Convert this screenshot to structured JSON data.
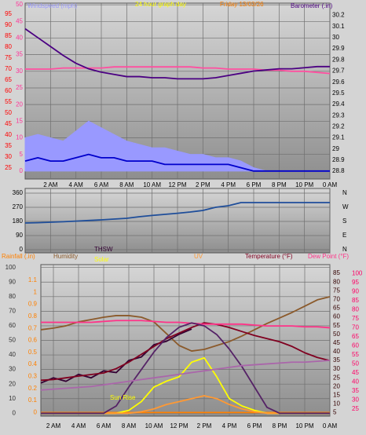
{
  "chart_data": [
    {
      "type": "line",
      "title": "24 hour graph day",
      "subtitle": "Friday 13/03/26",
      "x": [
        0,
        1,
        2,
        3,
        4,
        5,
        6,
        7,
        8,
        9,
        10,
        11,
        12,
        13,
        14,
        15,
        16,
        17,
        18,
        19,
        20,
        21,
        22,
        23,
        24
      ],
      "xlim": [
        0,
        24
      ],
      "xticks": [
        {
          "value": 2,
          "label": "2 AM"
        },
        {
          "value": 4,
          "label": "4 AM"
        },
        {
          "value": 6,
          "label": "6 AM"
        },
        {
          "value": 8,
          "label": "8 AM"
        },
        {
          "value": 10,
          "label": "10 AM"
        },
        {
          "value": 12,
          "label": "12 PM"
        },
        {
          "value": 14,
          "label": "2 PM"
        },
        {
          "value": 16,
          "label": "4 PM"
        },
        {
          "value": 18,
          "label": "6 PM"
        },
        {
          "value": 20,
          "label": "8 PM"
        },
        {
          "value": 22,
          "label": "10 PM"
        },
        {
          "value": 24,
          "label": "0 AM"
        }
      ],
      "grid": true,
      "axes": [
        {
          "side": "left",
          "color": "#ff3399",
          "lim": [
            -2.4,
            50.5
          ],
          "ticks": [
            0,
            5,
            10,
            15,
            20,
            25,
            30,
            35,
            40,
            45,
            50
          ],
          "grid": true
        },
        {
          "side": "left",
          "color": "#ff0000",
          "lim": [
            20,
            100
          ],
          "ticks": [
            25,
            30,
            35,
            40,
            45,
            50,
            55,
            60,
            65,
            70,
            75,
            80,
            85,
            90,
            95
          ]
        },
        {
          "side": "right",
          "color": "#000000",
          "lim": [
            28.73,
            30.31
          ],
          "ticks": [
            28.8,
            28.9,
            29,
            29.1,
            29.2,
            29.3,
            29.4,
            29.5,
            29.6,
            29.7,
            29.8,
            29.9,
            30,
            30.1,
            30.2
          ]
        }
      ],
      "series": [
        {
          "name": "Windspeed (mph)",
          "color": "#9999ff",
          "axis": 0,
          "area": true,
          "values": [
            10,
            11,
            10,
            9,
            12,
            15,
            13,
            11,
            9,
            8,
            7,
            7,
            6,
            5,
            5,
            4,
            4,
            3,
            1,
            0,
            0,
            0,
            0,
            0,
            0
          ]
        },
        {
          "color": "#0000cc",
          "axis": 0,
          "values": [
            3,
            4,
            3,
            3,
            4,
            5,
            4,
            4,
            3,
            3,
            3,
            2,
            2,
            2,
            2,
            2,
            2,
            1,
            0,
            0,
            0,
            0,
            0,
            0,
            0
          ]
        },
        {
          "color": "#ff4fa0",
          "axis": 1,
          "values": [
            70,
            70,
            70,
            70.5,
            70.5,
            70.5,
            70.5,
            71,
            71,
            71,
            71,
            71,
            71,
            71,
            70.5,
            70.5,
            70,
            70,
            70,
            69.5,
            69.5,
            69,
            69,
            68.5,
            68
          ]
        },
        {
          "name": "Barometer (.in)",
          "color": "#4b0082",
          "axis": 2,
          "values": [
            30.08,
            30.0,
            29.92,
            29.84,
            29.77,
            29.72,
            29.69,
            29.67,
            29.65,
            29.65,
            29.64,
            29.64,
            29.63,
            29.63,
            29.63,
            29.64,
            29.66,
            29.68,
            29.7,
            29.71,
            29.72,
            29.72,
            29.73,
            29.74,
            29.74
          ]
        }
      ]
    },
    {
      "type": "line",
      "x": [
        0,
        1,
        2,
        3,
        4,
        5,
        6,
        7,
        8,
        9,
        10,
        11,
        12,
        13,
        14,
        15,
        16,
        17,
        18,
        19,
        20,
        21,
        22,
        23,
        24
      ],
      "xlim": [
        0,
        24
      ],
      "xticks": [
        {
          "value": 2,
          "label": "2 AM"
        },
        {
          "value": 4,
          "label": "4 AM"
        },
        {
          "value": 6,
          "label": "6 AM"
        },
        {
          "value": 8,
          "label": "8 AM"
        },
        {
          "value": 10,
          "label": "10 AM"
        },
        {
          "value": 12,
          "label": "12 PM"
        },
        {
          "value": 14,
          "label": "2 PM"
        },
        {
          "value": 16,
          "label": "4 PM"
        },
        {
          "value": 18,
          "label": "6 PM"
        },
        {
          "value": 20,
          "label": "8 PM"
        },
        {
          "value": 22,
          "label": "10 PM"
        },
        {
          "value": 24,
          "label": "0 AM"
        }
      ],
      "grid": true,
      "axes": [
        {
          "side": "left",
          "color": "#000000",
          "lim": [
            -20,
            390
          ],
          "ticks": [
            0,
            90,
            180,
            270,
            360
          ],
          "grid": true
        },
        {
          "side": "right",
          "color": "#000000",
          "lim": [
            -20,
            390
          ],
          "ticks": [
            {
              "value": 360,
              "label": "N"
            },
            {
              "value": 270,
              "label": "W"
            },
            {
              "value": 180,
              "label": "S"
            },
            {
              "value": 90,
              "label": "E"
            },
            {
              "value": 0,
              "label": "N"
            }
          ]
        }
      ],
      "series": [
        {
          "color": "#1f4e9a",
          "axis": 0,
          "values": [
            170,
            172,
            175,
            178,
            182,
            186,
            190,
            195,
            200,
            210,
            218,
            225,
            232,
            240,
            250,
            270,
            280,
            300,
            300,
            300,
            300,
            300,
            300,
            300,
            300
          ]
        }
      ]
    },
    {
      "type": "line",
      "annotations": [
        "Sun Rise"
      ],
      "x": [
        1,
        2,
        3,
        4,
        5,
        6,
        7,
        8,
        9,
        10,
        11,
        12,
        13,
        14,
        15,
        16,
        17,
        18,
        19,
        20,
        21,
        22,
        23,
        24
      ],
      "xlim": [
        1,
        24
      ],
      "xticks": [
        {
          "value": 2,
          "label": "2 AM"
        },
        {
          "value": 4,
          "label": "4 AM"
        },
        {
          "value": 6,
          "label": "6 AM"
        },
        {
          "value": 8,
          "label": "8 AM"
        },
        {
          "value": 10,
          "label": "10 AM"
        },
        {
          "value": 12,
          "label": "12 PM"
        },
        {
          "value": 14,
          "label": "2 PM"
        },
        {
          "value": 16,
          "label": "4 PM"
        },
        {
          "value": 18,
          "label": "6 PM"
        },
        {
          "value": 20,
          "label": "8 PM"
        },
        {
          "value": 22,
          "label": "10 PM"
        },
        {
          "value": 24,
          "label": "0 AM"
        }
      ],
      "grid": true,
      "axes": [
        {
          "side": "left",
          "color": "#333333",
          "lim": [
            -2,
            102
          ],
          "ticks": [
            0,
            10,
            20,
            30,
            40,
            50,
            60,
            70,
            80,
            90,
            100
          ],
          "grid": true
        },
        {
          "side": "left",
          "color": "#ff8000",
          "lim": [
            -0.03,
            1.23
          ],
          "ticks": [
            0,
            0.1,
            0.2,
            0.3,
            0.4,
            0.5,
            0.6,
            0.7,
            0.8,
            0.9,
            1,
            1.1
          ]
        },
        {
          "side": "right",
          "color": "#330000",
          "lim": [
            3,
            90
          ],
          "ticks": [
            5,
            10,
            15,
            20,
            25,
            30,
            35,
            40,
            45,
            50,
            55,
            60,
            65,
            70,
            75,
            80,
            85
          ]
        },
        {
          "side": "right",
          "color": "#ff0066",
          "lim": [
            21,
            105
          ],
          "ticks": [
            25,
            30,
            35,
            40,
            45,
            50,
            55,
            60,
            65,
            70,
            75,
            80,
            85,
            90,
            95,
            100
          ]
        }
      ],
      "series": [
        {
          "name": "Rainfall (.in)",
          "color": "#ff8000",
          "axis": 1,
          "values": [
            0,
            0,
            0,
            0,
            0,
            0,
            0,
            0,
            0,
            0,
            0,
            0,
            0,
            0,
            0,
            0,
            0,
            0,
            0,
            0,
            0,
            0,
            0,
            0
          ]
        },
        {
          "name": "Humidity",
          "color": "#8b5a2b",
          "axis": 0,
          "values": [
            57.3,
            58.4,
            60,
            62.7,
            64.3,
            65.9,
            67,
            67,
            65.9,
            62.7,
            54.6,
            46.5,
            42.7,
            43.8,
            46.5,
            49.2,
            53,
            57.3,
            61.6,
            65.4,
            69.2,
            73.5,
            77.8,
            80
          ]
        },
        {
          "name": "THSW",
          "color": "#330033",
          "axis": 2,
          "values": [
            22,
            25,
            23,
            27,
            25,
            29,
            28,
            35,
            37,
            44,
            46,
            50,
            53,
            null,
            null,
            null,
            null,
            null,
            null,
            null,
            null,
            null,
            null,
            null
          ]
        },
        {
          "name": "Temperature (°F)",
          "color": "#800020",
          "axis": 2,
          "values": [
            23.6,
            24,
            25,
            26,
            26.9,
            27.8,
            30.3,
            34,
            38.5,
            43,
            47.5,
            50.7,
            53.9,
            56.6,
            55.7,
            53.9,
            51.6,
            49.3,
            47.5,
            45.7,
            43,
            39.4,
            36.7,
            34.9
          ]
        },
        {
          "name": "Dew Point (°F)",
          "color": "#ff3388",
          "axis": 3,
          "values": [
            73,
            73,
            73,
            73,
            73,
            73.5,
            74,
            74,
            74,
            73.5,
            73,
            73,
            72.5,
            72,
            72,
            72,
            72,
            71.5,
            71,
            71,
            71,
            70.5,
            70.5,
            70
          ]
        },
        {
          "name": "Solar",
          "color": "#ffff00",
          "axis": 0,
          "values": [
            0,
            0,
            0,
            0,
            0,
            0,
            0,
            2,
            8,
            18,
            22,
            25,
            35,
            38,
            25,
            10,
            5,
            2,
            0,
            0,
            0,
            0,
            0,
            0
          ]
        },
        {
          "name": "UV",
          "color": "#ff9933",
          "axis": 0,
          "values": [
            0,
            0,
            0,
            0,
            0,
            0,
            0,
            0,
            1,
            3,
            6,
            8,
            10,
            12,
            10,
            6,
            3,
            1,
            0,
            0,
            0,
            0,
            0,
            0
          ]
        },
        {
          "color": "#552266",
          "axis": 0,
          "values": [
            0,
            0,
            0,
            0,
            0,
            0,
            5,
            18,
            30,
            42,
            52,
            59,
            62,
            60,
            54,
            44,
            32,
            18,
            4,
            0,
            0,
            0,
            0,
            0
          ]
        },
        {
          "color": "#aa66aa",
          "axis": 2,
          "values": [
            18,
            18.5,
            19,
            19.5,
            20,
            21,
            22,
            23,
            24,
            25,
            26,
            27,
            28,
            29,
            30,
            31,
            32,
            32.5,
            33,
            33.5,
            34,
            34,
            34.5,
            35
          ]
        }
      ]
    }
  ]
}
